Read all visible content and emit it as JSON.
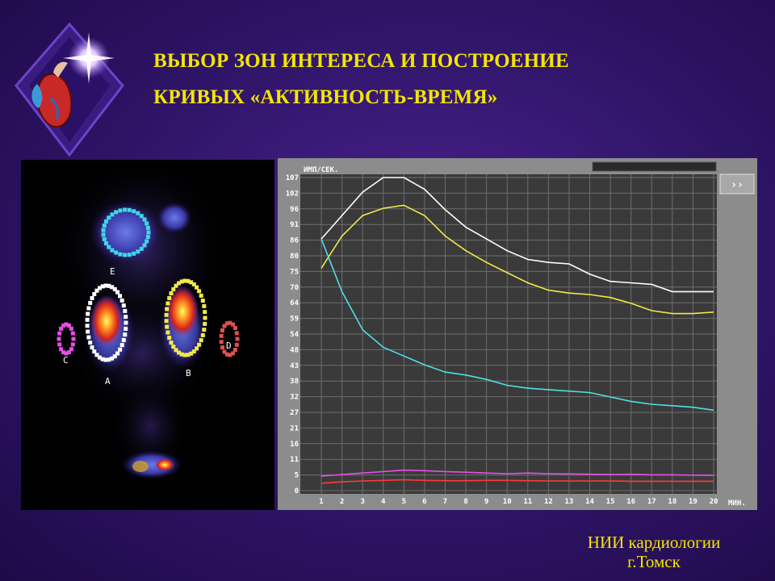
{
  "title": {
    "line1": "ВЫБОР ЗОН ИНТЕРЕСА И ПОСТРОЕНИЕ",
    "line2": "КРИВЫХ «АКТИВНОСТЬ-ВРЕМЯ»"
  },
  "credit": {
    "line1": "НИИ кардиологии",
    "line2": "г.Томск"
  },
  "scan": {
    "roi_labels": [
      "E",
      "A",
      "B",
      "C",
      "D"
    ],
    "roi_colors": {
      "E": "#3fd6e6",
      "A": "#ffffff",
      "B": "#f2e94a",
      "C": "#e64fe6",
      "D": "#e05050"
    }
  },
  "chart_data": {
    "type": "line",
    "ylabel": "ИМП/СЕК.",
    "xlabel": "МИН.",
    "x": [
      1,
      2,
      3,
      4,
      5,
      6,
      7,
      8,
      9,
      10,
      11,
      12,
      13,
      14,
      15,
      16,
      17,
      18,
      19,
      20
    ],
    "y_ticks": [
      "107",
      "102",
      "96",
      "91",
      "86",
      "80",
      "75",
      "70",
      "64",
      "59",
      "54",
      "48",
      "43",
      "38",
      "32",
      "27",
      "21",
      "16",
      "11",
      "5",
      "0"
    ],
    "ylim": [
      0,
      107
    ],
    "grid": true,
    "nav_button": "››",
    "series": [
      {
        "color": "#ffffff",
        "values": [
          86,
          94,
          102,
          107,
          107,
          103,
          96,
          90,
          86,
          82,
          79,
          78,
          77.5,
          74,
          71.5,
          71,
          70.5,
          68,
          68,
          68
        ]
      },
      {
        "color": "#f2e94a",
        "values": [
          76,
          87,
          94,
          96.5,
          97.5,
          94,
          87,
          82,
          78,
          74.5,
          71,
          68.5,
          67.5,
          67,
          66,
          64,
          61.5,
          60.5,
          60.5,
          61
        ]
      },
      {
        "color": "#4fe0e6",
        "values": [
          86,
          68,
          55,
          49,
          46,
          43,
          40.5,
          39.5,
          38,
          36,
          35,
          34.5,
          34,
          33.5,
          32,
          30.5,
          29.5,
          29,
          28.5,
          27.5
        ]
      },
      {
        "color": "#e64fe6",
        "values": [
          5,
          5.5,
          6,
          6.5,
          7,
          6.8,
          6.5,
          6.3,
          6.0,
          5.8,
          6.0,
          5.8,
          5.7,
          5.6,
          5.5,
          5.6,
          5.4,
          5.4,
          5.3,
          5.2
        ]
      },
      {
        "color": "#ff3a3a",
        "values": [
          2.5,
          3.0,
          3.3,
          3.5,
          3.7,
          3.5,
          3.4,
          3.4,
          3.5,
          3.5,
          3.4,
          3.3,
          3.3,
          3.3,
          3.3,
          3.2,
          3.2,
          3.2,
          3.2,
          3.2
        ]
      }
    ]
  }
}
